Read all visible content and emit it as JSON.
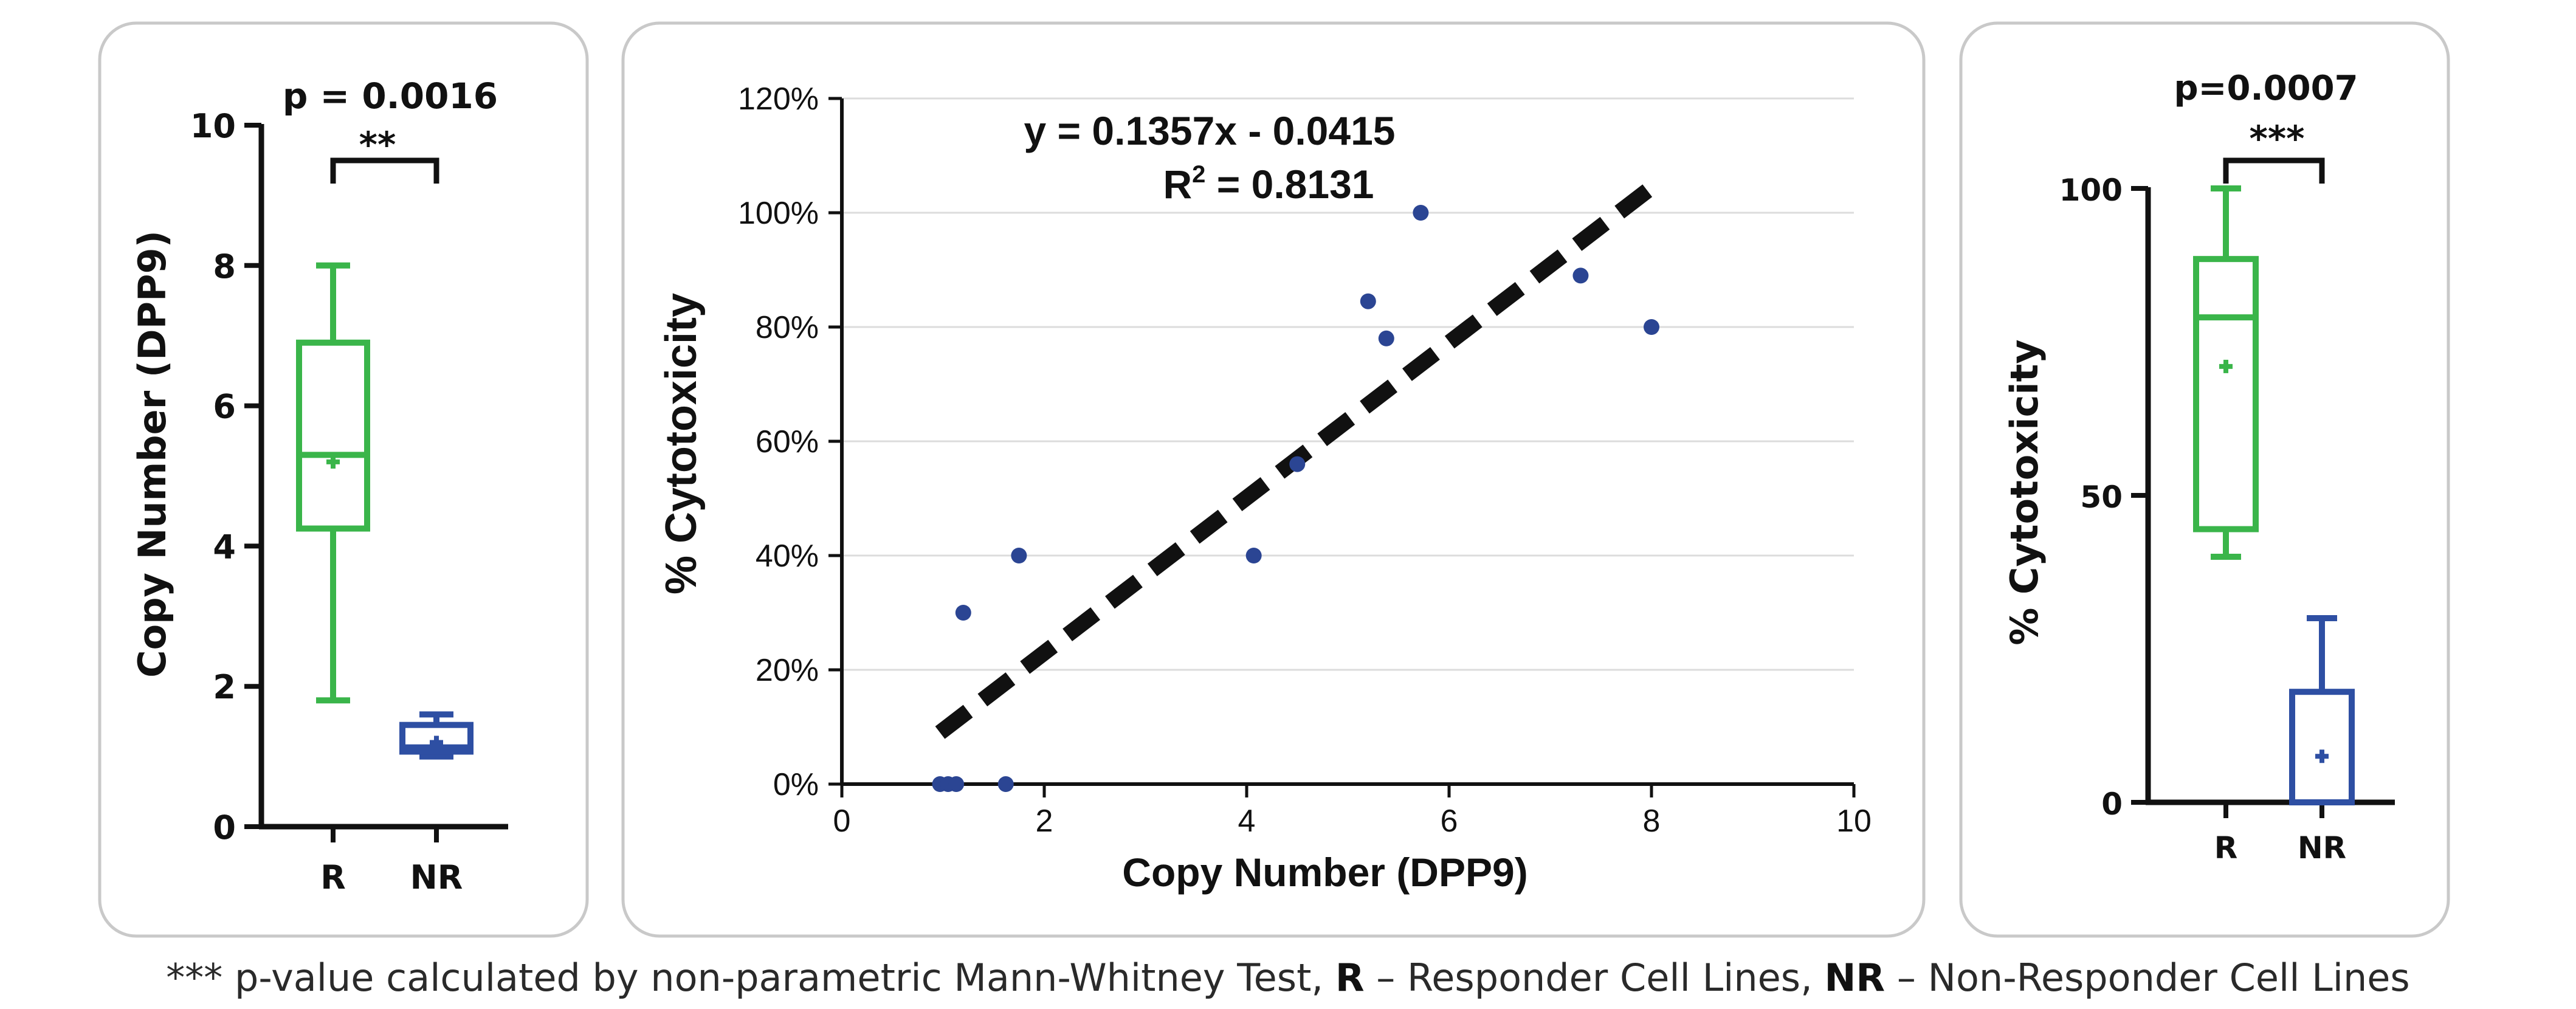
{
  "colors": {
    "responder": "#3ab54a",
    "non_responder": "#2e4fa3",
    "scatter_point": "#2b4593",
    "trendline": "#111111",
    "axis": "#111111",
    "gridline": "#dcdcdc",
    "frame": "#c9c9c9"
  },
  "footnote": {
    "prefix": "*** p-value calculated by non-parametric Mann-Whitney Test, ",
    "r_abbrev": "R",
    "r_text": " – Responder Cell Lines, ",
    "nr_abbrev": "NR",
    "nr_text": " – Non-Responder Cell Lines"
  },
  "chart_data": [
    {
      "type": "box",
      "ylabel": "Copy Number (DPP9)",
      "ylim": [
        0,
        10
      ],
      "yticks": [
        "0",
        "2",
        "4",
        "6",
        "8",
        "10"
      ],
      "categories": [
        "R",
        "NR"
      ],
      "p_value_label": "p = 0.0016",
      "significance": "**",
      "grid": false,
      "series": [
        {
          "min": 1.8,
          "q1": 4.25,
          "median": 5.3,
          "q3": 6.9,
          "max": 8.0,
          "mean": 5.2
        },
        {
          "min": 1.0,
          "q1": 1.07,
          "median": 1.13,
          "q3": 1.45,
          "max": 1.6,
          "mean": 1.2
        }
      ]
    },
    {
      "type": "scatter",
      "xlabel": "Copy Number (DPP9)",
      "ylabel": "% Cytotoxicity",
      "xlim": [
        0,
        10
      ],
      "ylim": [
        0,
        1.2
      ],
      "xticks": [
        "0",
        "2",
        "4",
        "6",
        "8",
        "10"
      ],
      "yticks": [
        "0%",
        "20%",
        "40%",
        "60%",
        "80%",
        "100%",
        "120%"
      ],
      "grid": true,
      "points": [
        {
          "x": 0.97,
          "y": 0.0
        },
        {
          "x": 1.05,
          "y": 0.0
        },
        {
          "x": 1.13,
          "y": 0.0
        },
        {
          "x": 1.62,
          "y": 0.0
        },
        {
          "x": 1.2,
          "y": 0.3
        },
        {
          "x": 1.75,
          "y": 0.4
        },
        {
          "x": 4.07,
          "y": 0.4
        },
        {
          "x": 4.5,
          "y": 0.56
        },
        {
          "x": 5.2,
          "y": 0.845
        },
        {
          "x": 5.38,
          "y": 0.78
        },
        {
          "x": 5.72,
          "y": 1.0
        },
        {
          "x": 7.3,
          "y": 0.89
        },
        {
          "x": 8.0,
          "y": 0.8
        }
      ],
      "trendline": {
        "slope": 0.1357,
        "intercept": -0.0415,
        "x_range": [
          0.97,
          8.0
        ],
        "equation": "y = 0.1357x - 0.0415",
        "r2_label": "R",
        "r2_superscript": "2",
        "r2_value": " = 0.8131"
      }
    },
    {
      "type": "box",
      "ylabel": "% Cytotoxicity",
      "ylim": [
        0,
        100
      ],
      "yticks": [
        "0",
        "50",
        "100"
      ],
      "categories": [
        "R",
        "NR"
      ],
      "p_value_label": "p=0.0007",
      "significance": "***",
      "grid": false,
      "series": [
        {
          "min": 40,
          "q1": 44.5,
          "median": 79,
          "q3": 88.5,
          "max": 100,
          "mean": 71
        },
        {
          "min": 0,
          "q1": 0,
          "median": 0,
          "q3": 18,
          "max": 30,
          "mean": 7.5
        }
      ]
    }
  ]
}
